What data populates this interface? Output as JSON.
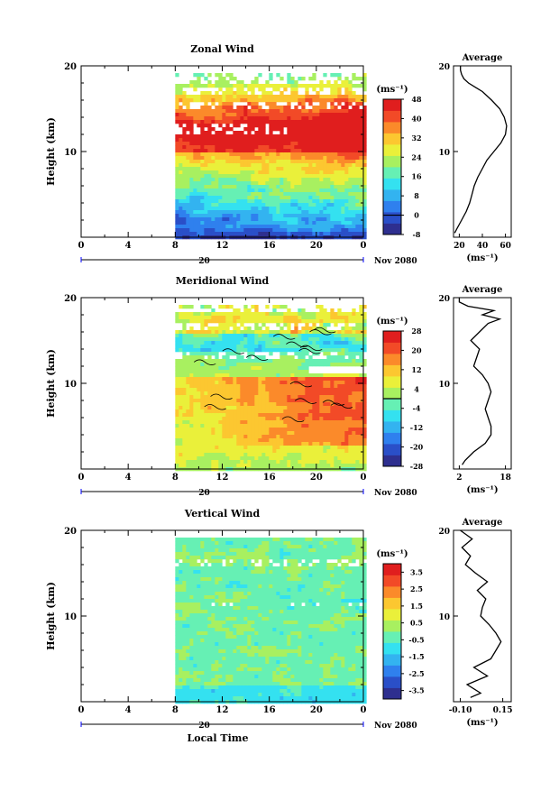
{
  "chart_data": [
    {
      "type": "heatmap",
      "title": "Zonal Wind",
      "ylabel": "Height (km)",
      "ylim": [
        0,
        20
      ],
      "yticks": [
        10,
        20
      ],
      "xticks": [
        "0",
        "4",
        "8",
        "12",
        "16",
        "20",
        "0"
      ],
      "xlim": [
        0,
        24
      ],
      "date_label": "20",
      "date_suffix": "Nov 2080",
      "data_start_hour": 8,
      "colorbar": {
        "unit": "(ms⁻¹)",
        "ticks": [
          "-8",
          "0",
          "8",
          "16",
          "24",
          "32",
          "40",
          "48"
        ],
        "range": [
          -8,
          48
        ],
        "zero_line": 0
      },
      "average": {
        "title": "Average",
        "xticks": [
          "20",
          "40",
          "60"
        ],
        "xlim": [
          15,
          65
        ],
        "xlabel": "(ms⁻¹)",
        "yticks": [
          10,
          20
        ],
        "ylim": [
          0,
          20
        ],
        "height_km": [
          0.5,
          1,
          2,
          3,
          4,
          5,
          6,
          7,
          8,
          9,
          10,
          11,
          12,
          13,
          14,
          15,
          16,
          17,
          17.5,
          18,
          18.5,
          19,
          19.5,
          20
        ],
        "values": [
          16,
          18,
          22,
          26,
          29,
          31,
          33,
          36,
          40,
          44,
          50,
          56,
          60,
          61,
          59,
          55,
          48,
          40,
          34,
          28,
          24,
          22,
          21,
          21
        ]
      }
    },
    {
      "type": "heatmap",
      "title": "Meridional Wind",
      "ylabel": "Height (km)",
      "ylim": [
        0,
        20
      ],
      "yticks": [
        10,
        20
      ],
      "xticks": [
        "0",
        "4",
        "8",
        "12",
        "16",
        "20",
        "0"
      ],
      "xlim": [
        0,
        24
      ],
      "date_label": "20",
      "date_suffix": "Nov 2080",
      "data_start_hour": 8,
      "colorbar": {
        "unit": "(ms⁻¹)",
        "ticks": [
          "-28",
          "-20",
          "-12",
          "-4",
          "4",
          "12",
          "20",
          "28"
        ],
        "range": [
          -28,
          28
        ],
        "zero_line": 0
      },
      "average": {
        "title": "Average",
        "xticks": [
          "2",
          "18"
        ],
        "xlim": [
          0,
          20
        ],
        "xlabel": "(ms⁻¹)",
        "yticks": [
          10,
          20
        ],
        "ylim": [
          0,
          20
        ],
        "height_km": [
          0.5,
          1,
          2,
          3,
          4,
          5,
          6,
          7,
          8,
          9,
          10,
          11,
          12,
          13,
          14,
          15,
          16,
          17,
          17.5,
          18,
          18.5,
          19,
          19.5,
          20
        ],
        "values": [
          3,
          4,
          7,
          11,
          13,
          13,
          12,
          11,
          12,
          13,
          12,
          10,
          7,
          8,
          9,
          6,
          9,
          12,
          16,
          10,
          14,
          5,
          2,
          2
        ]
      }
    },
    {
      "type": "heatmap",
      "title": "Vertical Wind",
      "ylabel": "Height (km)",
      "ylim": [
        0,
        20
      ],
      "yticks": [
        10,
        20
      ],
      "xticks": [
        "0",
        "4",
        "8",
        "12",
        "16",
        "20",
        "0"
      ],
      "xlim": [
        0,
        24
      ],
      "date_label": "20",
      "date_suffix": "Nov 2080",
      "xlabel": "Local Time",
      "data_start_hour": 8,
      "colorbar": {
        "unit": "(ms⁻¹)",
        "ticks": [
          "-3.5",
          "-2.5",
          "-1.5",
          "-0.5",
          "0.5",
          "1.5",
          "2.5",
          "3.5"
        ],
        "range": [
          -4,
          4
        ],
        "zero_line": null
      },
      "average": {
        "title": "Average",
        "xticks": [
          "-0.10",
          "0.15"
        ],
        "xlim": [
          -0.14,
          0.2
        ],
        "xlabel": "(ms⁻¹)",
        "yticks": [
          10,
          20
        ],
        "ylim": [
          0,
          20
        ],
        "height_km": [
          0.5,
          1,
          2,
          3,
          4,
          5,
          6,
          7,
          8,
          9,
          10,
          11,
          12,
          13,
          14,
          15,
          16,
          17,
          18,
          19,
          20
        ],
        "values": [
          -0.04,
          0.02,
          -0.06,
          0.06,
          -0.02,
          0.08,
          0.11,
          0.14,
          0.11,
          0.07,
          0.02,
          0.03,
          0.05,
          0.0,
          0.06,
          -0.01,
          -0.07,
          -0.04,
          -0.09,
          -0.03,
          -0.1
        ]
      }
    }
  ],
  "colors": {
    "scale": [
      "#2e2f8f",
      "#2a4fc8",
      "#2f80ee",
      "#33b3f0",
      "#34e1f0",
      "#66f0b4",
      "#a8f060",
      "#eaf03a",
      "#fcc730",
      "#fb8a2a",
      "#f24a27",
      "#e01e1e"
    ],
    "missing": "#ffffff"
  }
}
